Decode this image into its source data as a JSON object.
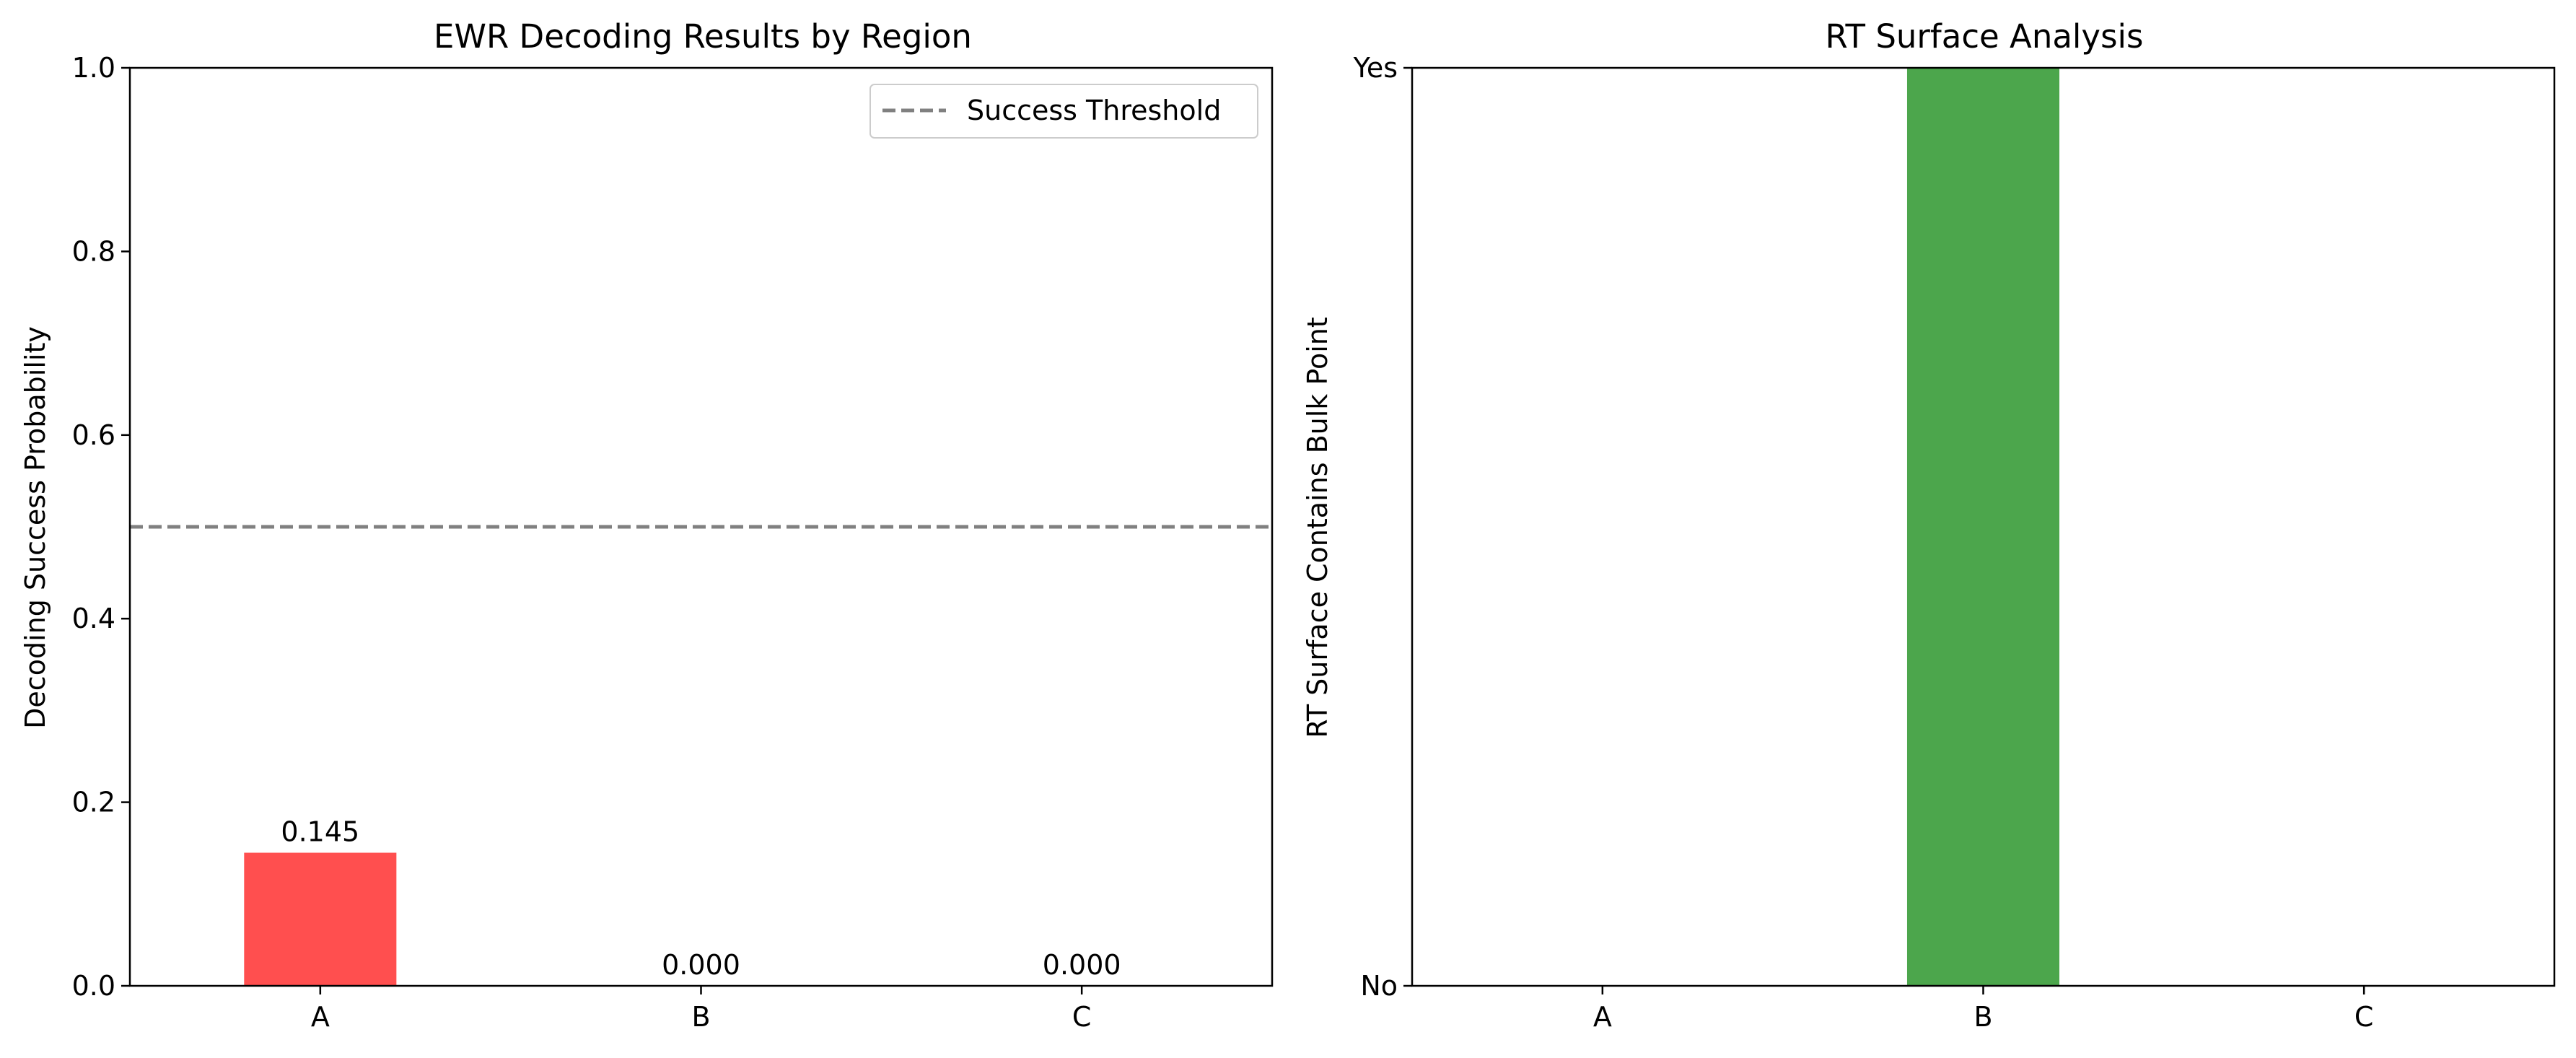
{
  "chart_data": [
    {
      "type": "bar",
      "title": "EWR Decoding Results by Region",
      "xlabel": "",
      "ylabel": "Decoding Success Probability",
      "categories": [
        "A",
        "B",
        "C"
      ],
      "values": [
        0.145,
        0.0,
        0.0
      ],
      "data_labels": [
        "0.145",
        "0.000",
        "0.000"
      ],
      "bar_colors": [
        "#ff4f4f",
        "#ff4f4f",
        "#ff4f4f"
      ],
      "ylim": [
        0,
        1.0
      ],
      "yticks": [
        0.0,
        0.2,
        0.4,
        0.6,
        0.8,
        1.0
      ],
      "ytick_labels": [
        "0.0",
        "0.2",
        "0.4",
        "0.6",
        "0.8",
        "1.0"
      ],
      "threshold": {
        "value": 0.5,
        "label": "Success Threshold",
        "color": "#808080",
        "style": "dashed"
      },
      "legend": {
        "placement": "top-right",
        "entries": [
          "Success Threshold"
        ]
      },
      "grid": false
    },
    {
      "type": "bar",
      "title": "RT Surface Analysis",
      "xlabel": "",
      "ylabel": "RT Surface Contains Bulk Point",
      "categories": [
        "A",
        "B",
        "C"
      ],
      "values": [
        0,
        1,
        0
      ],
      "bar_colors": [
        "#4ca64c",
        "#4ca64c",
        "#4ca64c"
      ],
      "ylim": [
        0,
        1
      ],
      "yticks": [
        0,
        1
      ],
      "ytick_labels": [
        "No",
        "Yes"
      ],
      "grid": false
    }
  ]
}
